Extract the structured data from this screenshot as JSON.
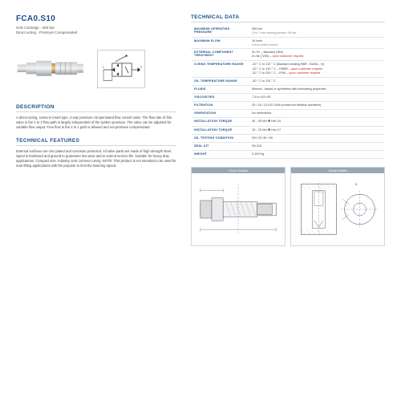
{
  "header": {
    "title": "FCA0.S10",
    "sub1": "SAE Cartridge - 350 bar",
    "sub2": "Direct acting - Pressure Compensated"
  },
  "sections": {
    "description_head": "DESCRIPTION",
    "description_body": "A direct acting, screw-in insert type, 2-way pressure compensated flow control valve. The flow rate of this valve in the 1 to 2 flow path is largely independent of the system pressure. The valve can be adjusted for variable flow output. Free flow in the 2 to 1 path is allowed and not pressure compensated.",
    "features_head": "TECHNICAL FEATURES",
    "features_body": "External surfaces are zinc plated and corrosion protected. All valve parts are made of high strength steel. Spool is hardened and ground to guarantee low wear and to extend service life. Suitable for heavy duty applications. Compact size. Industry SAE common cavity. NOTE: This product is not intended to be used for man-lifting applications with the purpose to limit the lowering speed.",
    "techdata_head": "TECHNICAL DATA"
  },
  "techdata": [
    {
      "label": "MAXIMUM OPERATING PRESSURE",
      "value": "350 bar",
      "note": "Q for 1 max working pressure 160 bar"
    },
    {
      "label": "MAXIMUM FLOW",
      "value": "16 l/min",
      "note": "in flow control function"
    },
    {
      "label": "EXTERNAL COMPONENT TREATMENT",
      "value": "Zn-Fe – standard (96h)\nZn-Ni (720h) – upon customer request"
    },
    {
      "label": "O-RING TEMPERATURE RANGE",
      "value": "-20 ° C to 110 ° C (standard sealing NBR - BUNA - N)\n-20 ° C to 140 ° C – HNBR – upon customer request\n-20 ° C to 200 ° C – FKM – upon customer request"
    },
    {
      "label": "OIL TEMPERATURE RANGE",
      "value": "-30 ° C to 110 ° C"
    },
    {
      "label": "FLUIDS",
      "value": "Mineral - based or synthetics with lubricating properties"
    },
    {
      "label": "VISCOSITIES",
      "value": "7,4 to 420 cSt"
    },
    {
      "label": "FILTRATION",
      "value": "25 / 16 / 13 ISO 4406 (maximum filtration admitted)"
    },
    {
      "label": "ORIENTATION",
      "value": "No restrictions"
    },
    {
      "label": "INSTALLATION TORQUE",
      "value": "40 - 45 Nm ✱ Hex 24"
    },
    {
      "label": "INSTALLATION TORQUE",
      "value": "15 - 20 Nm ✱ Hex 17"
    },
    {
      "label": "OIL TESTING CONDITION",
      "value": "ISO VG 46 +50"
    },
    {
      "label": "SEAL KIT",
      "value": "SK-501"
    },
    {
      "label": "WEIGHT",
      "value": "0,100 Kg"
    }
  ],
  "diagrams": {
    "left": "Cross Section",
    "right": "Cavity Details"
  },
  "colors": {
    "primary": "#1b4f8a",
    "accent": "#c02828",
    "border": "#cfd6dd",
    "diag_head": "#99a7b3"
  }
}
